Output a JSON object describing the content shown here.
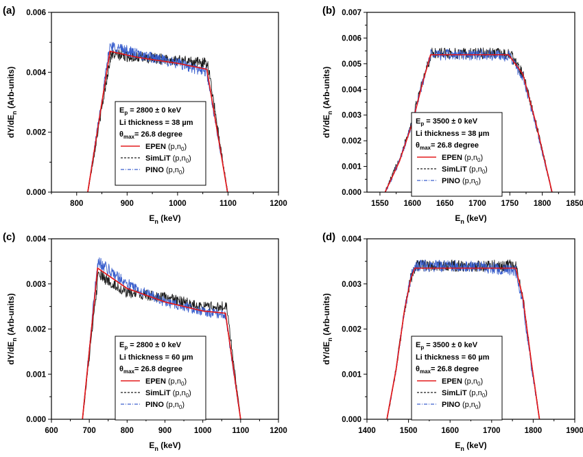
{
  "figure": {
    "xlabel": "E",
    "xlabel_sub": "n",
    "xlabel_unit": "(keV)",
    "ylabel": "dY/dE",
    "ylabel_sub": "n",
    "ylabel_unit": "(Arb-units)",
    "legend_names": {
      "epen": "EPEN",
      "simlit": "SimLiT",
      "pino": "PINO",
      "reaction": "(p,n",
      "reaction_sub": "0",
      "reaction_close": ")"
    },
    "colors": {
      "epen": "#e31a1c",
      "simlit": "#1a1a1a",
      "pino": "#3a5fcd"
    }
  },
  "chart_data": [
    {
      "panel": "(a)",
      "type": "line",
      "legend_text": {
        "ep": "= 2800 ± 0 keV",
        "li": "Li thickness = 38 µm",
        "theta": "= 26.8 degree"
      },
      "xlim": [
        750,
        1200
      ],
      "ylim": [
        0,
        0.006
      ],
      "xticks": [
        "800",
        "900",
        "1000",
        "1100",
        "1200"
      ],
      "yticks": [
        "0.000",
        "0.002",
        "0.004",
        "0.006"
      ],
      "series": [
        {
          "name": "EPEN",
          "x": [
            822,
            866,
            920,
            1000,
            1058,
            1099
          ],
          "y": [
            0,
            0.0047,
            0.0045,
            0.0043,
            0.0041,
            0
          ]
        },
        {
          "name": "SimLiT",
          "x": [
            822,
            868,
            920,
            1000,
            1060,
            1099
          ],
          "y": [
            0,
            0.0046,
            0.0045,
            0.0044,
            0.0043,
            0
          ]
        },
        {
          "name": "PINO",
          "x": [
            822,
            866,
            920,
            1000,
            1058,
            1099
          ],
          "y": [
            0,
            0.0049,
            0.0046,
            0.0043,
            0.004,
            0
          ]
        }
      ]
    },
    {
      "panel": "(b)",
      "type": "line",
      "legend_text": {
        "ep": "= 3500 ± 0 keV",
        "li": "Li thickness = 38 µm",
        "theta": "= 26.8 degree"
      },
      "xlim": [
        1530,
        1850
      ],
      "ylim": [
        0,
        0.007
      ],
      "xticks": [
        "1550",
        "1600",
        "1650",
        "1700",
        "1750",
        "1800",
        "1850"
      ],
      "yticks": [
        "0.000",
        "0.001",
        "0.002",
        "0.003",
        "0.004",
        "0.005",
        "0.006",
        "0.007"
      ],
      "series": [
        {
          "name": "EPEN",
          "x": [
            1558,
            1580,
            1600,
            1615,
            1628,
            1700,
            1748,
            1770,
            1790,
            1815
          ],
          "y": [
            0,
            0.0012,
            0.0027,
            0.0042,
            0.00535,
            0.00535,
            0.00535,
            0.0046,
            0.0027,
            0
          ]
        },
        {
          "name": "SimLiT",
          "x": [
            1558,
            1580,
            1600,
            1615,
            1630,
            1700,
            1750,
            1770,
            1790,
            1815
          ],
          "y": [
            0,
            0.0013,
            0.0028,
            0.0043,
            0.0054,
            0.0054,
            0.0054,
            0.0046,
            0.0027,
            0
          ]
        },
        {
          "name": "PINO",
          "x": [
            1558,
            1580,
            1600,
            1615,
            1628,
            1700,
            1748,
            1770,
            1790,
            1815
          ],
          "y": [
            0,
            0.0012,
            0.0027,
            0.0042,
            0.00535,
            0.00535,
            0.0053,
            0.0045,
            0.0026,
            0
          ]
        }
      ]
    },
    {
      "panel": "(c)",
      "type": "line",
      "legend_text": {
        "ep": "= 2800 ± 0 keV",
        "li": "Li thickness = 60 µm",
        "theta": "= 26.8 degree"
      },
      "xlim": [
        600,
        1200
      ],
      "ylim": [
        0,
        0.004
      ],
      "xticks": [
        "600",
        "700",
        "800",
        "900",
        "1000",
        "1100",
        "1200"
      ],
      "yticks": [
        "0.000",
        "0.001",
        "0.002",
        "0.003",
        "0.004"
      ],
      "series": [
        {
          "name": "EPEN",
          "x": [
            682,
            722,
            800,
            900,
            1000,
            1060,
            1100
          ],
          "y": [
            0,
            0.00335,
            0.0029,
            0.0026,
            0.0024,
            0.00235,
            0
          ]
        },
        {
          "name": "SimLiT",
          "x": [
            682,
            724,
            800,
            900,
            1000,
            1063,
            1100
          ],
          "y": [
            0,
            0.0032,
            0.0028,
            0.0027,
            0.0025,
            0.0025,
            0
          ]
        },
        {
          "name": "PINO",
          "x": [
            682,
            722,
            800,
            900,
            1000,
            1060,
            1100
          ],
          "y": [
            0,
            0.0035,
            0.003,
            0.0026,
            0.0024,
            0.0023,
            0
          ]
        }
      ]
    },
    {
      "panel": "(d)",
      "type": "line",
      "legend_text": {
        "ep": "= 3500 ± 0 keV",
        "li": "Li thickness = 60 µm",
        "theta": "= 26.8 degree"
      },
      "xlim": [
        1400,
        1900
      ],
      "ylim": [
        0,
        0.004
      ],
      "xticks": [
        "1400",
        "1500",
        "1600",
        "1700",
        "1800",
        "1900"
      ],
      "yticks": [
        "0.000",
        "0.001",
        "0.002",
        "0.003",
        "0.004"
      ],
      "series": [
        {
          "name": "EPEN",
          "x": [
            1448,
            1470,
            1490,
            1505,
            1515,
            1650,
            1758,
            1775,
            1795,
            1815
          ],
          "y": [
            0,
            0.0011,
            0.0024,
            0.0031,
            0.00335,
            0.00335,
            0.00335,
            0.0027,
            0.0013,
            0
          ]
        },
        {
          "name": "SimLiT",
          "x": [
            1448,
            1470,
            1490,
            1505,
            1518,
            1650,
            1760,
            1775,
            1795,
            1815
          ],
          "y": [
            0,
            0.0011,
            0.0024,
            0.0031,
            0.0034,
            0.0034,
            0.0034,
            0.0027,
            0.0013,
            0
          ]
        },
        {
          "name": "PINO",
          "x": [
            1448,
            1470,
            1490,
            1505,
            1515,
            1650,
            1758,
            1775,
            1795,
            1815
          ],
          "y": [
            0,
            0.0011,
            0.0024,
            0.0031,
            0.0034,
            0.0034,
            0.0033,
            0.0026,
            0.0012,
            0
          ]
        }
      ]
    }
  ]
}
